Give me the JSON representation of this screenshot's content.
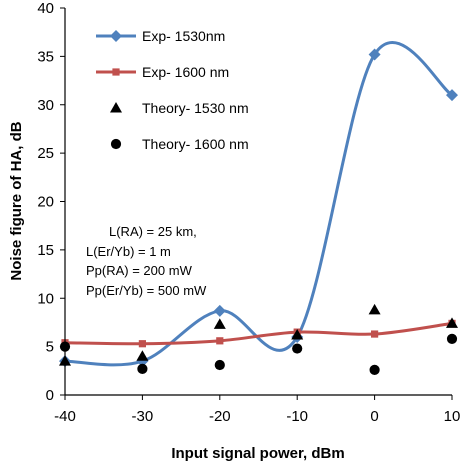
{
  "chart_data": {
    "type": "line",
    "xlabel": "Input signal power, dBm",
    "ylabel": "Noise figure of HA, dB",
    "xlim": [
      -40,
      10
    ],
    "ylim": [
      0,
      40
    ],
    "xticks": [
      "-40",
      "-30",
      "-20",
      "-10",
      "0",
      "10"
    ],
    "yticks": [
      "0",
      "5",
      "10",
      "15",
      "20",
      "25",
      "30",
      "35",
      "40"
    ],
    "grid": false,
    "legend_position": "top-right",
    "series": [
      {
        "name": "Exp- 1530nm",
        "style": "line-diamond",
        "color": "#4f81bd",
        "x": [
          -40,
          -30,
          -20,
          -10,
          0,
          10
        ],
        "y": [
          3.5,
          3.5,
          8.7,
          6.0,
          35.2,
          31.0
        ]
      },
      {
        "name": "Exp- 1600 nm",
        "style": "line-square",
        "color": "#c0504d",
        "x": [
          -40,
          -30,
          -20,
          -10,
          0,
          10
        ],
        "y": [
          5.4,
          5.3,
          5.6,
          6.5,
          6.3,
          7.4
        ]
      },
      {
        "name": "Theory- 1530 nm",
        "style": "triangle",
        "color": "#000000",
        "x": [
          -40,
          -30,
          -20,
          -10,
          0,
          10
        ],
        "y": [
          3.5,
          4.0,
          7.3,
          6.2,
          8.8,
          7.4
        ]
      },
      {
        "name": "Theory- 1600 nm",
        "style": "circle",
        "color": "#000000",
        "x": [
          -40,
          -30,
          -20,
          -10,
          0,
          10
        ],
        "y": [
          5.0,
          2.7,
          3.1,
          4.8,
          2.6,
          5.8
        ]
      }
    ],
    "annotations": [
      "L(RA) = 25 km,",
      "L(Er/Yb) = 1 m",
      "Pp(RA) = 200 mW",
      "Pp(Er/Yb) = 500 mW"
    ]
  }
}
